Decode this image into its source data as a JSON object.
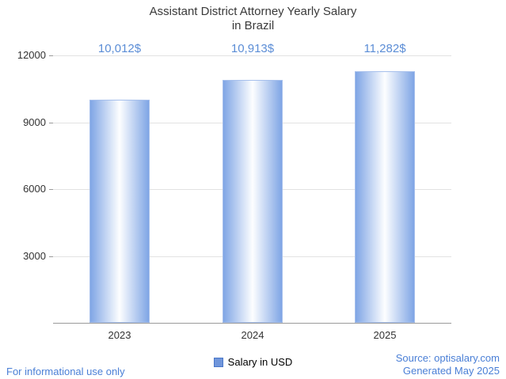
{
  "title": {
    "line1": "Assistant District Attorney Yearly Salary",
    "line2": "in Brazil"
  },
  "chart_data": {
    "type": "bar",
    "title": "Assistant District Attorney Yearly Salary in Brazil",
    "categories": [
      "2023",
      "2024",
      "2025"
    ],
    "values": [
      10012,
      10913,
      11282
    ],
    "value_labels": [
      "10,012$",
      "10,913$",
      "11,282$"
    ],
    "xlabel": "",
    "ylabel": "",
    "ylim": [
      0,
      12000
    ],
    "yticks": [
      3000,
      6000,
      9000,
      12000
    ],
    "grid": true,
    "legend_position": "bottom",
    "bar_gradient": [
      "#7fa5e5",
      "#fdfeff",
      "#7fa5e5"
    ],
    "value_label_color": "#5b8dd6",
    "accent_color": "#4a7fd6"
  },
  "legend": {
    "label": "Salary in USD"
  },
  "footer": {
    "disclaimer": "For informational use only",
    "source": "Source: optisalary.com",
    "generated": "Generated May 2025"
  }
}
